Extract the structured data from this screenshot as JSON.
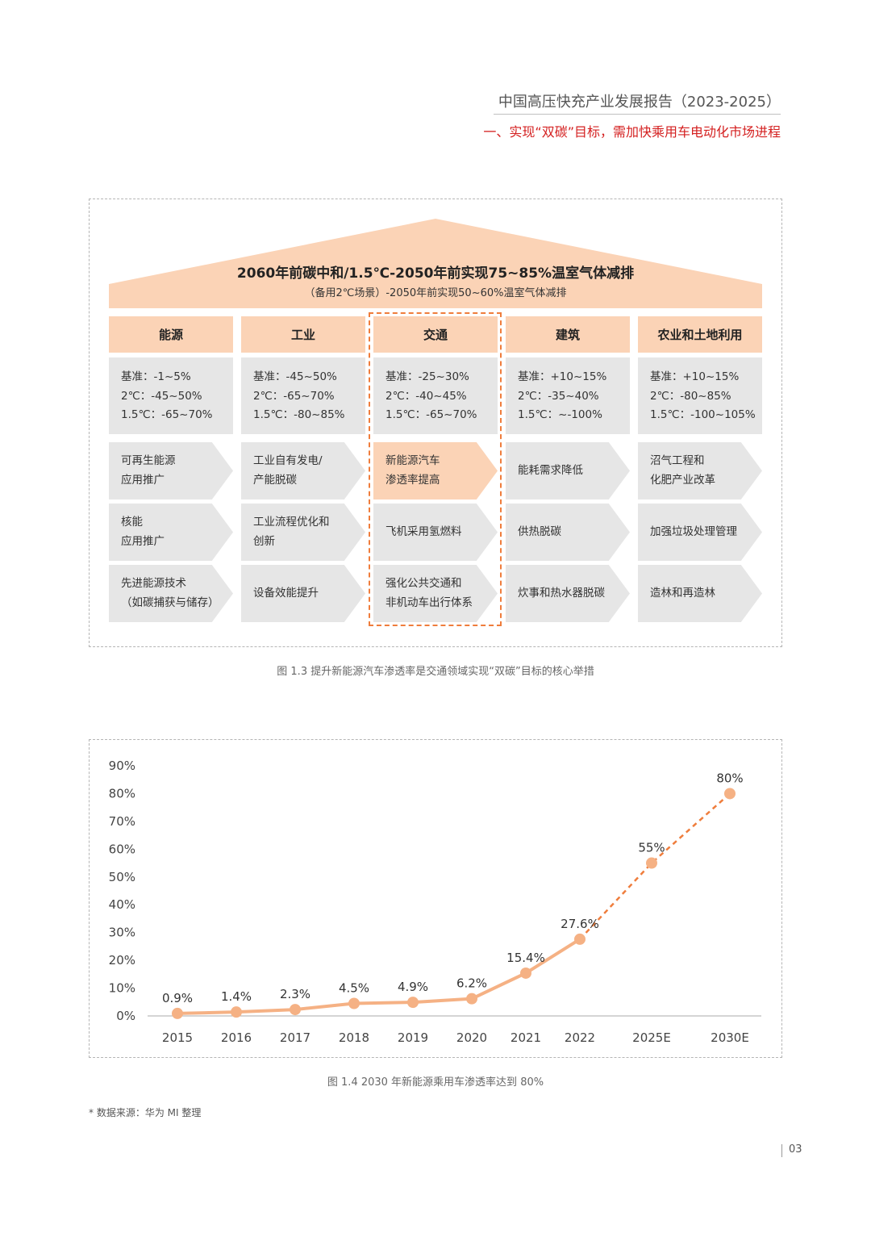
{
  "header": {
    "title": "中国高压快充产业发展报告（2023-2025）",
    "subtitle": "一、实现“双碳”目标，需加快乘用车电动化市场进程"
  },
  "figure1": {
    "roof_title": "2060年前碳中和/1.5℃-2050年前实现75~85%温室气体减排",
    "roof_subtitle": "（备用2℃场景）-2050年前实现50~60%温室气体减排",
    "columns": [
      {
        "name": "能源",
        "baseline": [
          "基准：-1~5%",
          "2℃：-45~50%",
          "1.5℃：-65~70%"
        ],
        "measures": [
          [
            "可再生能源",
            "应用推广"
          ],
          [
            "核能",
            "应用推广"
          ],
          [
            "先进能源技术",
            "（如碳捕获与储存）"
          ]
        ]
      },
      {
        "name": "工业",
        "baseline": [
          "基准：-45~50%",
          "2℃：-65~70%",
          "1.5℃：-80~85%"
        ],
        "measures": [
          [
            "工业自有发电/",
            "产能脱碳"
          ],
          [
            "工业流程优化和",
            "创新"
          ],
          [
            "设备效能提升"
          ]
        ]
      },
      {
        "name": "交通",
        "baseline": [
          "基准：-25~30%",
          "2℃：-40~45%",
          "1.5℃：-65~70%"
        ],
        "measures": [
          [
            "新能源汽车",
            "渗透率提高"
          ],
          [
            "飞机采用氢燃料"
          ],
          [
            "强化公共交通和",
            "非机动车出行体系"
          ]
        ]
      },
      {
        "name": "建筑",
        "baseline": [
          "基准：+10~15%",
          "2℃：-35~40%",
          "1.5℃：~-100%"
        ],
        "measures": [
          [
            "能耗需求降低"
          ],
          [
            "供热脱碳"
          ],
          [
            "炊事和热水器脱碳"
          ]
        ]
      },
      {
        "name": "农业和土地利用",
        "baseline": [
          "基准：+10~15%",
          "2℃：-80~85%",
          "1.5℃：-100~105%"
        ],
        "measures": [
          [
            "沼气工程和",
            "化肥产业改革"
          ],
          [
            "加强垃圾处理管理"
          ],
          [
            "造林和再造林"
          ]
        ]
      }
    ],
    "caption": "图 1.3 提升新能源汽车渗透率是交通领域实现“双碳”目标的核心举措"
  },
  "chart_data": {
    "type": "line",
    "categories": [
      "2015",
      "2016",
      "2017",
      "2018",
      "2019",
      "2020",
      "2021",
      "2022",
      "2025E",
      "2030E"
    ],
    "values": [
      0.9,
      1.4,
      2.3,
      4.5,
      4.9,
      6.2,
      15.4,
      27.6,
      55,
      80
    ],
    "data_labels": [
      "0.9%",
      "1.4%",
      "2.3%",
      "4.5%",
      "4.9%",
      "6.2%",
      "15.4%",
      "27.6%",
      "55%",
      "80%"
    ],
    "y_ticks": [
      "0%",
      "10%",
      "20%",
      "30%",
      "40%",
      "50%",
      "60%",
      "70%",
      "80%",
      "90%"
    ],
    "ylim": [
      0,
      90
    ],
    "projected_from_index": 7,
    "line_color": "#f5b184",
    "projection_color": "#ef7d3c",
    "grid": false
  },
  "figure2": {
    "caption": "图 1.4 2030 年新能源乘用车渗透率达到 80%"
  },
  "footnote": "* 数据来源：华为 MI 整理",
  "page_number": "03"
}
